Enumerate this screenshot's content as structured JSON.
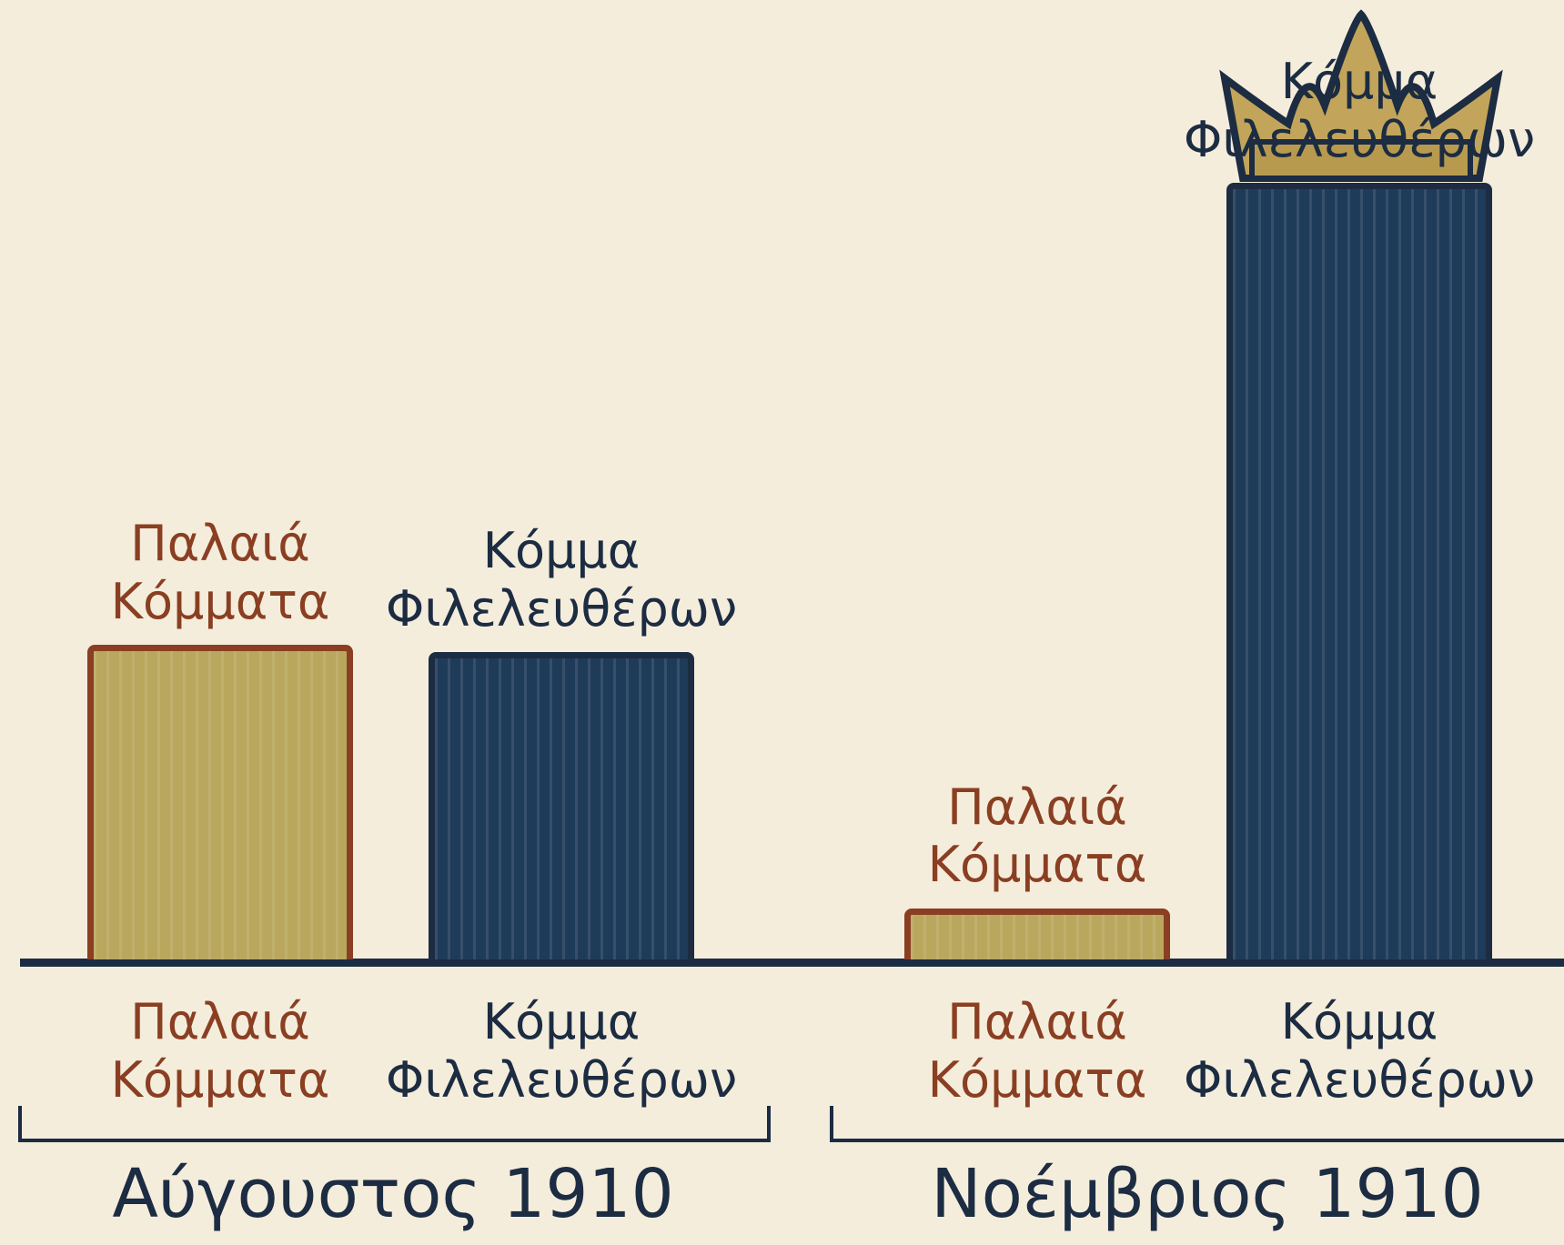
{
  "chart_data": {
    "type": "bar",
    "categories": [
      "Αύγουστος 1910",
      "Νοέμβριος 1910"
    ],
    "series": [
      {
        "name": "Παλαιά Κόμματα",
        "color": "#b9a75e",
        "edgecolor": "#8a3f22",
        "values": [
          40.5,
          6.6
        ]
      },
      {
        "name": "Κόμμα Φιλελευθέρων",
        "color": "#1f3b5a",
        "edgecolor": "#1c2c42",
        "values": [
          39.6,
          100
        ]
      }
    ],
    "ylim": [
      0,
      100
    ]
  }
}
